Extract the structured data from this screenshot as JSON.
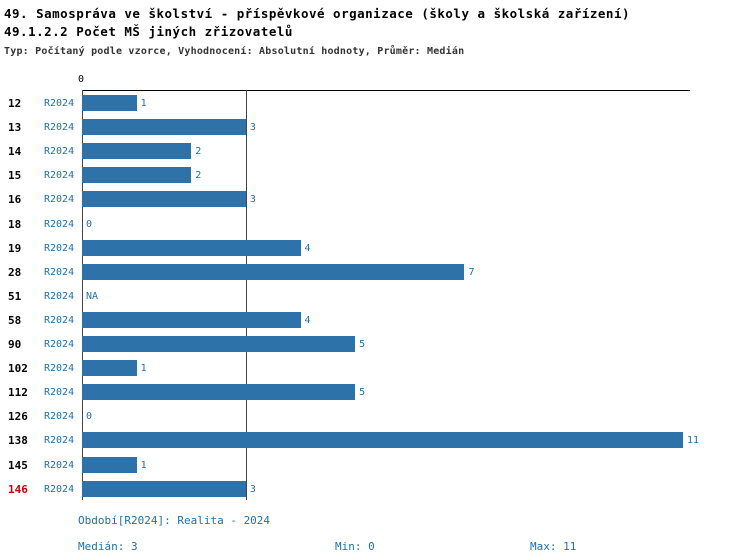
{
  "title_line1": "49. Samospráva ve školství - příspěvkové organizace (školy a školská zařízení)",
  "title_line2": "49.1.2.2 Počet MŠ jiných zřizovatelů",
  "subtitle": "Typ: Počítaný podle vzorce, Vyhodnocení: Absolutní hodnoty, Průměr: Medián",
  "axis_zero_label": "0",
  "chart_data": {
    "type": "bar",
    "orientation": "horizontal",
    "series_label": "R2024",
    "categories": [
      "12",
      "13",
      "14",
      "15",
      "16",
      "18",
      "19",
      "28",
      "51",
      "58",
      "90",
      "102",
      "112",
      "126",
      "138",
      "145",
      "146"
    ],
    "values": [
      1,
      3,
      2,
      2,
      3,
      0,
      4,
      7,
      "NA",
      4,
      5,
      1,
      5,
      0,
      11,
      1,
      3
    ],
    "xlim": [
      0,
      11
    ],
    "median_line_value": 3,
    "bar_color": "#2d72a8",
    "highlight_category": "146",
    "highlight_color": "#cc0000",
    "grid": "median-only",
    "legend_position": "none"
  },
  "footer": {
    "period": "Období[R2024]: Realita - 2024",
    "median": "Medián: 3",
    "min": "Min: 0",
    "max": "Max: 11"
  }
}
